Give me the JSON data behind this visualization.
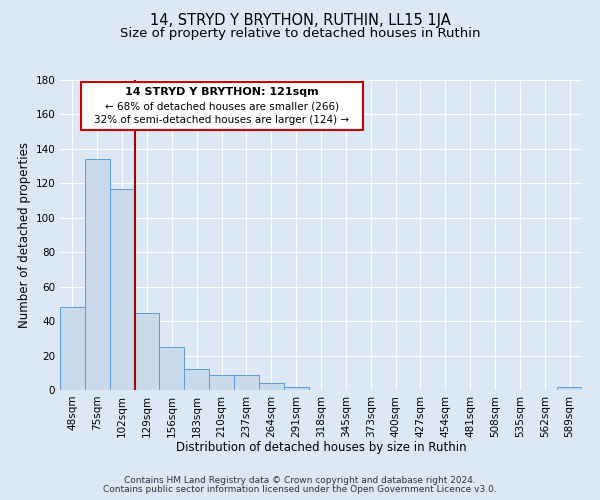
{
  "title": "14, STRYD Y BRYTHON, RUTHIN, LL15 1JA",
  "subtitle": "Size of property relative to detached houses in Ruthin",
  "xlabel": "Distribution of detached houses by size in Ruthin",
  "ylabel": "Number of detached properties",
  "bin_labels": [
    "48sqm",
    "75sqm",
    "102sqm",
    "129sqm",
    "156sqm",
    "183sqm",
    "210sqm",
    "237sqm",
    "264sqm",
    "291sqm",
    "318sqm",
    "345sqm",
    "373sqm",
    "400sqm",
    "427sqm",
    "454sqm",
    "481sqm",
    "508sqm",
    "535sqm",
    "562sqm",
    "589sqm"
  ],
  "bar_values": [
    48,
    134,
    117,
    45,
    25,
    12,
    9,
    9,
    4,
    2,
    0,
    0,
    0,
    0,
    0,
    0,
    0,
    0,
    0,
    0,
    2
  ],
  "bar_color": "#c9daea",
  "bar_edge_color": "#5b9bd5",
  "ylim": [
    0,
    180
  ],
  "yticks": [
    0,
    20,
    40,
    60,
    80,
    100,
    120,
    140,
    160,
    180
  ],
  "vline_x": 2.5,
  "vline_color": "#aa0000",
  "annotation_title": "14 STRYD Y BRYTHON: 121sqm",
  "annotation_line1": "← 68% of detached houses are smaller (266)",
  "annotation_line2": "32% of semi-detached houses are larger (124) →",
  "footer_line1": "Contains HM Land Registry data © Crown copyright and database right 2024.",
  "footer_line2": "Contains public sector information licensed under the Open Government Licence v3.0.",
  "background_color": "#dce8f5",
  "plot_bg_color": "#dce8f5",
  "grid_color": "#ffffff",
  "title_fontsize": 10.5,
  "subtitle_fontsize": 9.5,
  "axis_label_fontsize": 8.5,
  "tick_fontsize": 7.5,
  "footer_fontsize": 6.5
}
